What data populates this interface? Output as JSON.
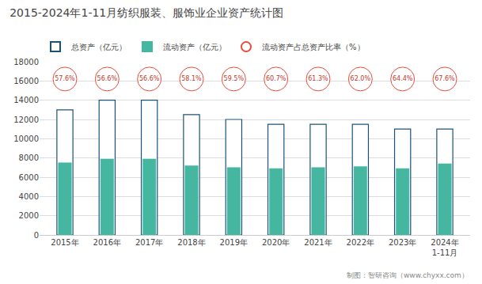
{
  "chart_data": {
    "type": "bar",
    "title": "2015-2024年1-11月纺织服装、服饰业企业资产统计图",
    "categories": [
      "2015年",
      "2016年",
      "2017年",
      "2018年",
      "2019年",
      "2020年",
      "2021年",
      "2022年",
      "2023年",
      "2024年\n1-11月"
    ],
    "series": [
      {
        "name": "总资产（亿元）",
        "type": "bar",
        "color": "#ffffff",
        "edgecolor": "#1a5276",
        "values": [
          13000,
          14000,
          14000,
          12500,
          12000,
          11500,
          11500,
          11500,
          11000,
          11000
        ]
      },
      {
        "name": "流动资产（亿元）",
        "type": "bar",
        "color": "#45b7a0",
        "values": [
          7500,
          7900,
          7900,
          7200,
          7000,
          6900,
          7000,
          7100,
          6900,
          7400
        ]
      },
      {
        "name": "流动资产占总资产比率（%）",
        "type": "scatter",
        "marker": "circle",
        "color": "#e74c3c",
        "text_color": "#c0392b",
        "data_labels": true,
        "values": [
          57.6,
          56.6,
          56.6,
          58.1,
          59.5,
          60.7,
          61.3,
          62.0,
          64.4,
          67.6
        ],
        "value_labels": [
          "57.6%",
          "56.6%",
          "56.6%",
          "58.1%",
          "59.5%",
          "60.7%",
          "61.3%",
          "62.0%",
          "64.4%",
          "67.6%"
        ]
      }
    ],
    "ylim": [
      0,
      18000
    ],
    "yticks": [
      0,
      2000,
      4000,
      6000,
      8000,
      10000,
      12000,
      14000,
      16000,
      18000
    ],
    "grid": true,
    "legend": "upper left",
    "background_color": "#ffffff",
    "annotations": [
      "制图：智研咨询（www.chyxx.com）"
    ]
  }
}
